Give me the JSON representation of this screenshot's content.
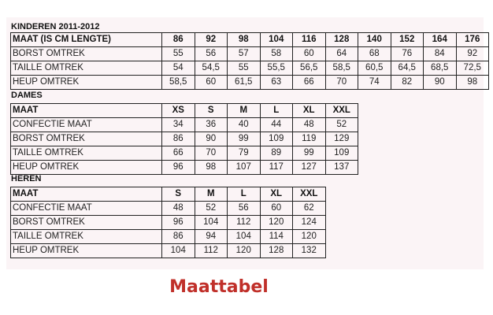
{
  "caption": "Maattabel",
  "sections": [
    {
      "title": "KINDEREN 2011-2012",
      "header": [
        "MAAT (IS CM LENGTE)",
        "86",
        "92",
        "98",
        "104",
        "116",
        "128",
        "140",
        "152",
        "164",
        "176"
      ],
      "rows": [
        [
          "BORST OMTREK",
          "55",
          "56",
          "57",
          "58",
          "60",
          "64",
          "68",
          "76",
          "84",
          "92"
        ],
        [
          "TAILLE OMTREK",
          "54",
          "54,5",
          "55",
          "55,5",
          "56,5",
          "58,5",
          "60,5",
          "64,5",
          "68,5",
          "72,5"
        ],
        [
          "HEUP OMTREK",
          "58,5",
          "60",
          "61,5",
          "63",
          "66",
          "70",
          "74",
          "82",
          "90",
          "98"
        ]
      ]
    },
    {
      "title": "DAMES",
      "header": [
        "MAAT",
        "XS",
        "S",
        "M",
        "L",
        "XL",
        "XXL"
      ],
      "rows": [
        [
          "CONFECTIE MAAT",
          "34",
          "36",
          "40",
          "44",
          "48",
          "52"
        ],
        [
          "BORST OMTREK",
          "86",
          "90",
          "99",
          "109",
          "119",
          "129"
        ],
        [
          "TAILLE OMTREK",
          "66",
          "70",
          "79",
          "89",
          "99",
          "109"
        ],
        [
          "HEUP OMTREK",
          "96",
          "98",
          "107",
          "117",
          "127",
          "137"
        ]
      ]
    },
    {
      "title": "HEREN",
      "header": [
        "MAAT",
        "S",
        "M",
        "L",
        "XL",
        "XXL"
      ],
      "rows": [
        [
          "CONFECTIE MAAT",
          "48",
          "52",
          "56",
          "60",
          "62"
        ],
        [
          "BORST OMTREK",
          "96",
          "104",
          "112",
          "120",
          "124"
        ],
        [
          "TAILLE OMTREK",
          "86",
          "94",
          "104",
          "114",
          "120"
        ],
        [
          "HEUP OMTREK",
          "104",
          "112",
          "120",
          "128",
          "132"
        ]
      ]
    }
  ]
}
